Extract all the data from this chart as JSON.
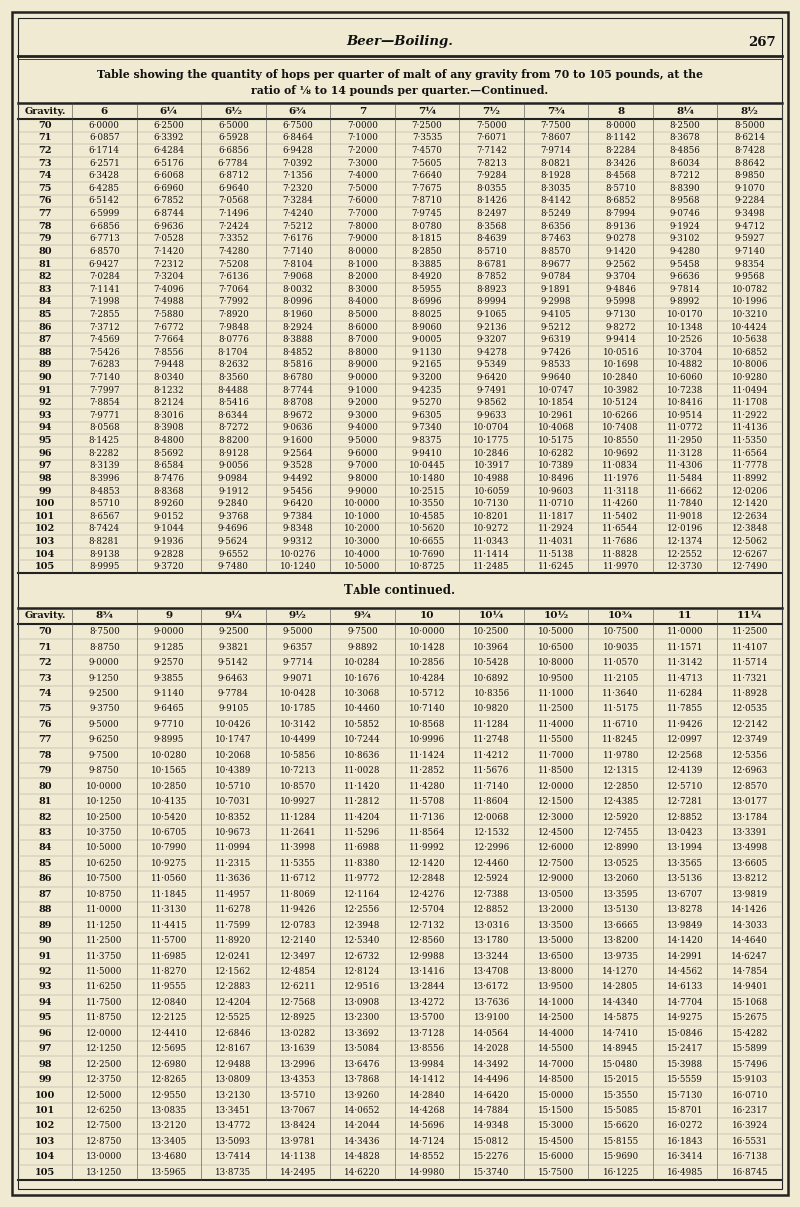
{
  "title_line1": "Table showing the quantity of hops per quarter of malt of any gravity from 70 to 105 pounds, at the",
  "title_line2": "ratio of ⅛ to 14 pounds per quarter.—Continued.",
  "header_line": "Beer—Boiling.",
  "page_num": "267",
  "table1_headers": [
    "Gravity.",
    "6",
    "6¼",
    "6½",
    "6¾",
    "7",
    "7¼",
    "7½",
    "7¾",
    "8",
    "8¼",
    "8½"
  ],
  "table2_headers": [
    "Gravity.",
    "8¾",
    "9",
    "9¼",
    "9½",
    "9¾",
    "10",
    "10¼",
    "10½",
    "10¾",
    "11",
    "11¼"
  ],
  "gravities": [
    70,
    71,
    72,
    73,
    74,
    75,
    76,
    77,
    78,
    79,
    80,
    81,
    82,
    83,
    84,
    85,
    86,
    87,
    88,
    89,
    90,
    91,
    92,
    93,
    94,
    95,
    96,
    97,
    98,
    99,
    100,
    101,
    102,
    103,
    104,
    105
  ],
  "table1_data": [
    [
      "6·0000",
      "6·2500",
      "6·5000",
      "6·7500",
      "7·0000",
      "7·2500",
      "7·5000",
      "7·7500",
      "8·0000",
      "8·2500",
      "8·5000"
    ],
    [
      "6·0857",
      "6·3392",
      "6·5928",
      "6·8464",
      "7·1000",
      "7·3535",
      "7·6071",
      "7·8607",
      "8·1142",
      "8·3678",
      "8·6214"
    ],
    [
      "6·1714",
      "6·4284",
      "6·6856",
      "6·9428",
      "7·2000",
      "7·4570",
      "7·7142",
      "7·9714",
      "8·2284",
      "8·4856",
      "8·7428"
    ],
    [
      "6·2571",
      "6·5176",
      "6·7784",
      "7·0392",
      "7·3000",
      "7·5605",
      "7·8213",
      "8·0821",
      "8·3426",
      "8·6034",
      "8·8642"
    ],
    [
      "6·3428",
      "6·6068",
      "6·8712",
      "7·1356",
      "7·4000",
      "7·6640",
      "7·9284",
      "8·1928",
      "8·4568",
      "8·7212",
      "8·9850"
    ],
    [
      "6·4285",
      "6·6960",
      "6·9640",
      "7·2320",
      "7·5000",
      "7·7675",
      "8·0355",
      "8·3035",
      "8·5710",
      "8·8390",
      "9·1070"
    ],
    [
      "6·5142",
      "6·7852",
      "7·0568",
      "7·3284",
      "7·6000",
      "7·8710",
      "8·1426",
      "8·4142",
      "8·6852",
      "8·9568",
      "9·2284"
    ],
    [
      "6·5999",
      "6·8744",
      "7·1496",
      "7·4240",
      "7·7000",
      "7·9745",
      "8·2497",
      "8·5249",
      "8·7994",
      "9·0746",
      "9·3498"
    ],
    [
      "6·6856",
      "6·9636",
      "7·2424",
      "7·5212",
      "7·8000",
      "8·0780",
      "8·3568",
      "8·6356",
      "8·9136",
      "9·1924",
      "9·4712"
    ],
    [
      "6·7713",
      "7·0528",
      "7·3352",
      "7·6176",
      "7·9000",
      "8·1815",
      "8·4639",
      "8·7463",
      "9·0278",
      "9·3102",
      "9·5927"
    ],
    [
      "6·8570",
      "7·1420",
      "7·4280",
      "7·7140",
      "8·0000",
      "8·2850",
      "8·5710",
      "8·8570",
      "9·1420",
      "9·4280",
      "9·7140"
    ],
    [
      "6·9427",
      "7·2312",
      "7·5208",
      "7·8104",
      "8·1000",
      "8·3885",
      "8·6781",
      "8·9677",
      "9·2562",
      "9·5458",
      "9·8354"
    ],
    [
      "7·0284",
      "7·3204",
      "7·6136",
      "7·9068",
      "8·2000",
      "8·4920",
      "8·7852",
      "9·0784",
      "9·3704",
      "9·6636",
      "9·9568"
    ],
    [
      "7·1141",
      "7·4096",
      "7·7064",
      "8·0032",
      "8·3000",
      "8·5955",
      "8·8923",
      "9·1891",
      "9·4846",
      "9·7814",
      "10·0782"
    ],
    [
      "7·1998",
      "7·4988",
      "7·7992",
      "8·0996",
      "8·4000",
      "8·6996",
      "8·9994",
      "9·2998",
      "9·5998",
      "9·8992",
      "10·1996"
    ],
    [
      "7·2855",
      "7·5880",
      "7·8920",
      "8·1960",
      "8·5000",
      "8·8025",
      "9·1065",
      "9·4105",
      "9·7130",
      "10·0170",
      "10·3210"
    ],
    [
      "7·3712",
      "7·6772",
      "7·9848",
      "8·2924",
      "8·6000",
      "8·9060",
      "9·2136",
      "9·5212",
      "9·8272",
      "10·1348",
      "10·4424"
    ],
    [
      "7·4569",
      "7·7664",
      "8·0776",
      "8·3888",
      "8·7000",
      "9·0005",
      "9·3207",
      "9·6319",
      "9·9414",
      "10·2526",
      "10·5638"
    ],
    [
      "7·5426",
      "7·8556",
      "8·1704",
      "8·4852",
      "8·8000",
      "9·1130",
      "9·4278",
      "9·7426",
      "10·0516",
      "10·3704",
      "10·6852"
    ],
    [
      "7·6283",
      "7·9448",
      "8·2632",
      "8·5816",
      "8·9000",
      "9·2165",
      "9·5349",
      "9·8533",
      "10·1698",
      "10·4882",
      "10·8006"
    ],
    [
      "7·7140",
      "8·0340",
      "8·3560",
      "8·6780",
      "9·0000",
      "9·3200",
      "9·6420",
      "9·9640",
      "10·2840",
      "10·6060",
      "10·9280"
    ],
    [
      "7·7997",
      "8·1232",
      "8·4488",
      "8·7744",
      "9·1000",
      "9·4235",
      "9·7491",
      "10·0747",
      "10·3982",
      "10·7238",
      "11·0494"
    ],
    [
      "7·8854",
      "8·2124",
      "8·5416",
      "8·8708",
      "9·2000",
      "9·5270",
      "9·8562",
      "10·1854",
      "10·5124",
      "10·8416",
      "11·1708"
    ],
    [
      "7·9771",
      "8·3016",
      "8·6344",
      "8·9672",
      "9·3000",
      "9·6305",
      "9·9633",
      "10·2961",
      "10·6266",
      "10·9514",
      "11·2922"
    ],
    [
      "8·0568",
      "8·3908",
      "8·7272",
      "9·0636",
      "9·4000",
      "9·7340",
      "10·0704",
      "10·4068",
      "10·7408",
      "11·0772",
      "11·4136"
    ],
    [
      "8·1425",
      "8·4800",
      "8·8200",
      "9·1600",
      "9·5000",
      "9·8375",
      "10·1775",
      "10·5175",
      "10·8550",
      "11·2950",
      "11·5350"
    ],
    [
      "8·2282",
      "8·5692",
      "8·9128",
      "9·2564",
      "9·6000",
      "9·9410",
      "10·2846",
      "10·6282",
      "10·9692",
      "11·3128",
      "11·6564"
    ],
    [
      "8·3139",
      "8·6584",
      "9·0056",
      "9·3528",
      "9·7000",
      "10·0445",
      "10·3917",
      "10·7389",
      "11·0834",
      "11·4306",
      "11·7778"
    ],
    [
      "8·3996",
      "8·7476",
      "9·0984",
      "9·4492",
      "9·8000",
      "10·1480",
      "10·4988",
      "10·8496",
      "11·1976",
      "11·5484",
      "11·8992"
    ],
    [
      "8·4853",
      "8·8368",
      "9·1912",
      "9·5456",
      "9·9000",
      "10·2515",
      "10·6059",
      "10·9603",
      "11·3118",
      "11·6662",
      "12·0206"
    ],
    [
      "8·5710",
      "8·9260",
      "9·2840",
      "9·6420",
      "10·0000",
      "10·3550",
      "10·7130",
      "11·0710",
      "11·4260",
      "11·7840",
      "12·1420"
    ],
    [
      "8·6567",
      "9·0152",
      "9·3768",
      "9·7384",
      "10·1000",
      "10·4585",
      "10·8201",
      "11·1817",
      "11·5402",
      "11·9018",
      "12·2634"
    ],
    [
      "8·7424",
      "9·1044",
      "9·4696",
      "9·8348",
      "10·2000",
      "10·5620",
      "10·9272",
      "11·2924",
      "11·6544",
      "12·0196",
      "12·3848"
    ],
    [
      "8·8281",
      "9·1936",
      "9·5624",
      "9·9312",
      "10·3000",
      "10·6655",
      "11·0343",
      "11·4031",
      "11·7686",
      "12·1374",
      "12·5062"
    ],
    [
      "8·9138",
      "9·2828",
      "9·6552",
      "10·0276",
      "10·4000",
      "10·7690",
      "11·1414",
      "11·5138",
      "11·8828",
      "12·2552",
      "12·6267"
    ],
    [
      "8·9995",
      "9·3720",
      "9·7480",
      "10·1240",
      "10·5000",
      "10·8725",
      "11·2485",
      "11·6245",
      "11·9970",
      "12·3730",
      "12·7490"
    ]
  ],
  "table2_data": [
    [
      "8·7500",
      "9·0000",
      "9·2500",
      "9·5000",
      "9·7500",
      "10·0000",
      "10·2500",
      "10·5000",
      "10·7500",
      "11·0000",
      "11·2500"
    ],
    [
      "8·8750",
      "9·1285",
      "9·3821",
      "9·6357",
      "9·8892",
      "10·1428",
      "10·3964",
      "10·6500",
      "10·9035",
      "11·1571",
      "11·4107"
    ],
    [
      "9·0000",
      "9·2570",
      "9·5142",
      "9·7714",
      "10·0284",
      "10·2856",
      "10·5428",
      "10·8000",
      "11·0570",
      "11·3142",
      "11·5714"
    ],
    [
      "9·1250",
      "9·3855",
      "9·6463",
      "9·9071",
      "10·1676",
      "10·4284",
      "10·6892",
      "10·9500",
      "11·2105",
      "11·4713",
      "11·7321"
    ],
    [
      "9·2500",
      "9·1140",
      "9·7784",
      "10·0428",
      "10·3068",
      "10·5712",
      "10·8356",
      "11·1000",
      "11·3640",
      "11·6284",
      "11·8928"
    ],
    [
      "9·3750",
      "9·6465",
      "9·9105",
      "10·1785",
      "10·4460",
      "10·7140",
      "10·9820",
      "11·2500",
      "11·5175",
      "11·7855",
      "12·0535"
    ],
    [
      "9·5000",
      "9·7710",
      "10·0426",
      "10·3142",
      "10·5852",
      "10·8568",
      "11·1284",
      "11·4000",
      "11·6710",
      "11·9426",
      "12·2142"
    ],
    [
      "9·6250",
      "9·8995",
      "10·1747",
      "10·4499",
      "10·7244",
      "10·9996",
      "11·2748",
      "11·5500",
      "11·8245",
      "12·0997",
      "12·3749"
    ],
    [
      "9·7500",
      "10·0280",
      "10·2068",
      "10·5856",
      "10·8636",
      "11·1424",
      "11·4212",
      "11·7000",
      "11·9780",
      "12·2568",
      "12·5356"
    ],
    [
      "9·8750",
      "10·1565",
      "10·4389",
      "10·7213",
      "11·0028",
      "11·2852",
      "11·5676",
      "11·8500",
      "12·1315",
      "12·4139",
      "12·6963"
    ],
    [
      "10·0000",
      "10·2850",
      "10·5710",
      "10·8570",
      "11·1420",
      "11·4280",
      "11·7140",
      "12·0000",
      "12·2850",
      "12·5710",
      "12·8570"
    ],
    [
      "10·1250",
      "10·4135",
      "10·7031",
      "10·9927",
      "11·2812",
      "11·5708",
      "11·8604",
      "12·1500",
      "12·4385",
      "12·7281",
      "13·0177"
    ],
    [
      "10·2500",
      "10·5420",
      "10·8352",
      "11·1284",
      "11·4204",
      "11·7136",
      "12·0068",
      "12·3000",
      "12·5920",
      "12·8852",
      "13·1784"
    ],
    [
      "10·3750",
      "10·6705",
      "10·9673",
      "11·2641",
      "11·5296",
      "11·8564",
      "12·1532",
      "12·4500",
      "12·7455",
      "13·0423",
      "13·3391"
    ],
    [
      "10·5000",
      "10·7990",
      "11·0994",
      "11·3998",
      "11·6988",
      "11·9992",
      "12·2996",
      "12·6000",
      "12·8990",
      "13·1994",
      "13·4998"
    ],
    [
      "10·6250",
      "10·9275",
      "11·2315",
      "11·5355",
      "11·8380",
      "12·1420",
      "12·4460",
      "12·7500",
      "13·0525",
      "13·3565",
      "13·6605"
    ],
    [
      "10·7500",
      "11·0560",
      "11·3636",
      "11·6712",
      "11·9772",
      "12·2848",
      "12·5924",
      "12·9000",
      "13·2060",
      "13·5136",
      "13·8212"
    ],
    [
      "10·8750",
      "11·1845",
      "11·4957",
      "11·8069",
      "12·1164",
      "12·4276",
      "12·7388",
      "13·0500",
      "13·3595",
      "13·6707",
      "13·9819"
    ],
    [
      "11·0000",
      "11·3130",
      "11·6278",
      "11·9426",
      "12·2556",
      "12·5704",
      "12·8852",
      "13·2000",
      "13·5130",
      "13·8278",
      "14·1426"
    ],
    [
      "11·1250",
      "11·4415",
      "11·7599",
      "12·0783",
      "12·3948",
      "12·7132",
      "13·0316",
      "13·3500",
      "13·6665",
      "13·9849",
      "14·3033"
    ],
    [
      "11·2500",
      "11·5700",
      "11·8920",
      "12·2140",
      "12·5340",
      "12·8560",
      "13·1780",
      "13·5000",
      "13·8200",
      "14·1420",
      "14·4640"
    ],
    [
      "11·3750",
      "11·6985",
      "12·0241",
      "12·3497",
      "12·6732",
      "12·9988",
      "13·3244",
      "13·6500",
      "13·9735",
      "14·2991",
      "14·6247"
    ],
    [
      "11·5000",
      "11·8270",
      "12·1562",
      "12·4854",
      "12·8124",
      "13·1416",
      "13·4708",
      "13·8000",
      "14·1270",
      "14·4562",
      "14·7854"
    ],
    [
      "11·6250",
      "11·9555",
      "12·2883",
      "12·6211",
      "12·9516",
      "13·2844",
      "13·6172",
      "13·9500",
      "14·2805",
      "14·6133",
      "14·9401"
    ],
    [
      "11·7500",
      "12·0840",
      "12·4204",
      "12·7568",
      "13·0908",
      "13·4272",
      "13·7636",
      "14·1000",
      "14·4340",
      "14·7704",
      "15·1068"
    ],
    [
      "11·8750",
      "12·2125",
      "12·5525",
      "12·8925",
      "13·2300",
      "13·5700",
      "13·9100",
      "14·2500",
      "14·5875",
      "14·9275",
      "15·2675"
    ],
    [
      "12·0000",
      "12·4410",
      "12·6846",
      "13·0282",
      "13·3692",
      "13·7128",
      "14·0564",
      "14·4000",
      "14·7410",
      "15·0846",
      "15·4282"
    ],
    [
      "12·1250",
      "12·5695",
      "12·8167",
      "13·1639",
      "13·5084",
      "13·8556",
      "14·2028",
      "14·5500",
      "14·8945",
      "15·2417",
      "15·5899"
    ],
    [
      "12·2500",
      "12·6980",
      "12·9488",
      "13·2996",
      "13·6476",
      "13·9984",
      "14·3492",
      "14·7000",
      "15·0480",
      "15·3988",
      "15·7496"
    ],
    [
      "12·3750",
      "12·8265",
      "13·0809",
      "13·4353",
      "13·7868",
      "14·1412",
      "14·4496",
      "14·8500",
      "15·2015",
      "15·5559",
      "15·9103"
    ],
    [
      "12·5000",
      "12·9550",
      "13·2130",
      "13·5710",
      "13·9260",
      "14·2840",
      "14·6420",
      "15·0000",
      "15·3550",
      "15·7130",
      "16·0710"
    ],
    [
      "12·6250",
      "13·0835",
      "13·3451",
      "13·7067",
      "14·0652",
      "14·4268",
      "14·7884",
      "15·1500",
      "15·5085",
      "15·8701",
      "16·2317"
    ],
    [
      "12·7500",
      "13·2120",
      "13·4772",
      "13·8424",
      "14·2044",
      "14·5696",
      "14·9348",
      "15·3000",
      "15·6620",
      "16·0272",
      "16·3924"
    ],
    [
      "12·8750",
      "13·3405",
      "13·5093",
      "13·9781",
      "14·3436",
      "14·7124",
      "15·0812",
      "15·4500",
      "15·8155",
      "16·1843",
      "16·5531"
    ],
    [
      "13·0000",
      "13·4680",
      "13·7414",
      "14·1138",
      "14·4828",
      "14·8552",
      "15·2276",
      "15·6000",
      "15·9690",
      "16·3414",
      "16·7138"
    ],
    [
      "13·1250",
      "13·5965",
      "13·8735",
      "14·2495",
      "14·6220",
      "14·9980",
      "15·3740",
      "15·7500",
      "16·1225",
      "16·4985",
      "16·8745"
    ]
  ],
  "bg_color": "#f0ead2",
  "text_color": "#111111",
  "table_continued_label": "Table continued."
}
